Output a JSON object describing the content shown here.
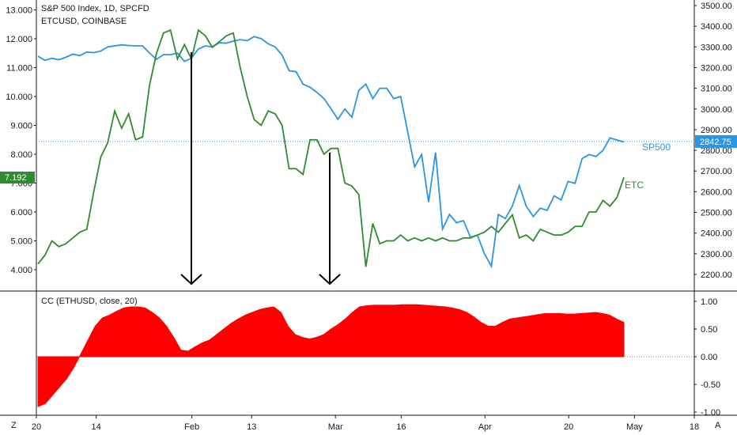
{
  "colors": {
    "etc": "#2e8b2e",
    "sp500": "#2a94e5",
    "cc": "#ff0000",
    "grid_line": "#2a94e5",
    "pane_divider": "#131722",
    "arrow": "#000000"
  },
  "header": {
    "main_title": "S&P 500 Index, 1D, SPCFD",
    "secondary_title": "ETCUSD, COINBASE",
    "indicator_title": "CC (ETHUSD, close, 20)"
  },
  "badges": {
    "etc_price": "7.192",
    "sp500_price": "2842.75"
  },
  "series_labels": {
    "sp500": "SP500",
    "etc": "ETC"
  },
  "corner": {
    "z": "Z",
    "a": "A"
  },
  "chart_data": [
    {
      "type": "line",
      "ylim_left": [
        3.6,
        13.0
      ],
      "ylim_right": [
        2150,
        3500
      ],
      "left_ticks": [
        "13.000",
        "12.000",
        "11.000",
        "10.000",
        "9.000",
        "8.000",
        "7.000",
        "6.000",
        "5.000",
        "4.000"
      ],
      "right_ticks": [
        "3500.00",
        "3400.00",
        "3300.00",
        "3200.00",
        "3100.00",
        "3000.00",
        "2900.00",
        "2800.00",
        "2700.00",
        "2600.00",
        "2500.00",
        "2400.00",
        "2300.00",
        "2200.00"
      ],
      "x_ticks": [
        "20",
        "14",
        "Feb",
        "13",
        "Mar",
        "16",
        "Apr",
        "20",
        "May",
        "18"
      ],
      "x_tick_idx": [
        0,
        10,
        26,
        36,
        50,
        61,
        75,
        89,
        100,
        110
      ],
      "n_points": 111,
      "series": [
        {
          "name": "ETC",
          "values": [
            [
              0,
              4.2
            ],
            [
              1,
              4.5
            ],
            [
              2,
              5.0
            ],
            [
              3,
              4.8
            ],
            [
              4,
              4.9
            ],
            [
              5,
              5.1
            ],
            [
              6,
              5.3
            ],
            [
              7,
              5.4
            ],
            [
              8,
              6.7
            ],
            [
              9,
              7.9
            ],
            [
              10,
              8.4
            ],
            [
              11,
              9.5
            ],
            [
              12,
              8.9
            ],
            [
              13,
              9.4
            ],
            [
              14,
              8.5
            ],
            [
              15,
              8.6
            ],
            [
              16,
              10.4
            ],
            [
              17,
              11.5
            ],
            [
              18,
              12.2
            ],
            [
              19,
              12.3
            ],
            [
              20,
              11.3
            ],
            [
              21,
              11.8
            ],
            [
              22,
              11.3
            ],
            [
              23,
              12.3
            ],
            [
              24,
              12.1
            ],
            [
              25,
              11.7
            ],
            [
              26,
              11.9
            ],
            [
              27,
              12.1
            ],
            [
              28,
              12.2
            ],
            [
              29,
              11.0
            ],
            [
              30,
              10.0
            ],
            [
              31,
              9.2
            ],
            [
              32,
              9.0
            ],
            [
              33,
              9.5
            ],
            [
              34,
              9.4
            ],
            [
              35,
              9.0
            ],
            [
              36,
              7.5
            ],
            [
              37,
              7.5
            ],
            [
              38,
              7.3
            ],
            [
              39,
              8.5
            ],
            [
              40,
              8.5
            ],
            [
              41,
              8.0
            ],
            [
              42,
              8.2
            ],
            [
              43,
              8.2
            ],
            [
              44,
              7.0
            ],
            [
              45,
              6.9
            ],
            [
              46,
              6.6
            ],
            [
              47,
              4.1
            ],
            [
              48,
              5.6
            ],
            [
              49,
              4.9
            ],
            [
              50,
              5.0
            ],
            [
              51,
              5.0
            ],
            [
              52,
              5.2
            ],
            [
              53,
              5.0
            ],
            [
              54,
              5.1
            ],
            [
              55,
              5.0
            ],
            [
              56,
              5.1
            ],
            [
              57,
              5.0
            ],
            [
              58,
              5.1
            ],
            [
              59,
              5.0
            ],
            [
              60,
              5.0
            ],
            [
              61,
              5.1
            ],
            [
              62,
              5.1
            ],
            [
              63,
              5.2
            ],
            [
              64,
              5.3
            ],
            [
              65,
              5.5
            ],
            [
              66,
              5.3
            ],
            [
              67,
              5.6
            ],
            [
              68,
              5.9
            ],
            [
              69,
              5.1
            ],
            [
              70,
              5.2
            ],
            [
              71,
              5.0
            ],
            [
              72,
              5.4
            ],
            [
              73,
              5.3
            ],
            [
              74,
              5.2
            ],
            [
              75,
              5.2
            ],
            [
              76,
              5.3
            ],
            [
              77,
              5.5
            ],
            [
              78,
              5.5
            ],
            [
              79,
              6.0
            ],
            [
              80,
              6.0
            ],
            [
              81,
              6.4
            ],
            [
              82,
              6.2
            ],
            [
              83,
              6.5
            ],
            [
              84,
              7.2
            ]
          ]
        },
        {
          "name": "SP500",
          "values": [
            [
              0,
              3255
            ],
            [
              1,
              3235
            ],
            [
              2,
              3245
            ],
            [
              3,
              3238
            ],
            [
              4,
              3250
            ],
            [
              5,
              3265
            ],
            [
              6,
              3258
            ],
            [
              7,
              3275
            ],
            [
              8,
              3272
            ],
            [
              9,
              3280
            ],
            [
              10,
              3300
            ],
            [
              11,
              3305
            ],
            [
              12,
              3310
            ],
            [
              13,
              3307
            ],
            [
              14,
              3305
            ],
            [
              15,
              3305
            ],
            [
              16,
              3270
            ],
            [
              17,
              3240
            ],
            [
              18,
              3263
            ],
            [
              19,
              3262
            ],
            [
              20,
              3270
            ],
            [
              21,
              3230
            ],
            [
              22,
              3245
            ],
            [
              23,
              3290
            ],
            [
              24,
              3305
            ],
            [
              25,
              3300
            ],
            [
              26,
              3320
            ],
            [
              27,
              3318
            ],
            [
              28,
              3328
            ],
            [
              29,
              3335
            ],
            [
              30,
              3330
            ],
            [
              31,
              3350
            ],
            [
              32,
              3340
            ],
            [
              33,
              3315
            ],
            [
              34,
              3300
            ],
            [
              35,
              3260
            ],
            [
              36,
              3185
            ],
            [
              37,
              3180
            ],
            [
              38,
              3120
            ],
            [
              39,
              3105
            ],
            [
              40,
              3080
            ],
            [
              41,
              3050
            ],
            [
              42,
              3002
            ],
            [
              43,
              2950
            ],
            [
              44,
              3000
            ],
            [
              45,
              2960
            ],
            [
              46,
              3090
            ],
            [
              47,
              3120
            ],
            [
              48,
              3050
            ],
            [
              49,
              3100
            ],
            [
              50,
              3100
            ],
            [
              51,
              3050
            ],
            [
              52,
              3060
            ],
            [
              53,
              2890
            ],
            [
              54,
              2720
            ],
            [
              55,
              2780
            ],
            [
              56,
              2550
            ],
            [
              57,
              2790
            ],
            [
              58,
              2420
            ],
            [
              59,
              2490
            ],
            [
              60,
              2450
            ],
            [
              61,
              2460
            ],
            [
              62,
              2380
            ],
            [
              63,
              2390
            ],
            [
              64,
              2300
            ],
            [
              65,
              2240
            ],
            [
              66,
              2490
            ],
            [
              67,
              2470
            ],
            [
              68,
              2530
            ],
            [
              69,
              2630
            ],
            [
              70,
              2530
            ],
            [
              71,
              2480
            ],
            [
              72,
              2520
            ],
            [
              73,
              2510
            ],
            [
              74,
              2580
            ],
            [
              75,
              2560
            ],
            [
              76,
              2650
            ],
            [
              77,
              2640
            ],
            [
              78,
              2760
            ],
            [
              79,
              2780
            ],
            [
              80,
              2770
            ],
            [
              81,
              2800
            ],
            [
              82,
              2860
            ],
            [
              83,
              2850
            ],
            [
              84,
              2840
            ]
          ]
        }
      ]
    },
    {
      "type": "area",
      "title": "CC (ETHUSD, close, 20)",
      "ylim": [
        -1.0,
        1.0
      ],
      "ticks": [
        "1.00",
        "0.50",
        "0.00",
        "-0.50",
        "-1.00"
      ],
      "values": [
        [
          0,
          -0.9
        ],
        [
          1,
          -0.85
        ],
        [
          2,
          -0.7
        ],
        [
          3,
          -0.55
        ],
        [
          4,
          -0.4
        ],
        [
          5,
          -0.2
        ],
        [
          6,
          0.05
        ],
        [
          7,
          0.3
        ],
        [
          8,
          0.55
        ],
        [
          9,
          0.7
        ],
        [
          10,
          0.75
        ],
        [
          11,
          0.82
        ],
        [
          12,
          0.88
        ],
        [
          13,
          0.9
        ],
        [
          14,
          0.9
        ],
        [
          15,
          0.88
        ],
        [
          16,
          0.8
        ],
        [
          17,
          0.7
        ],
        [
          18,
          0.55
        ],
        [
          19,
          0.35
        ],
        [
          20,
          0.12
        ],
        [
          21,
          0.1
        ],
        [
          22,
          0.18
        ],
        [
          23,
          0.25
        ],
        [
          24,
          0.3
        ],
        [
          25,
          0.4
        ],
        [
          26,
          0.5
        ],
        [
          27,
          0.6
        ],
        [
          28,
          0.68
        ],
        [
          29,
          0.75
        ],
        [
          30,
          0.8
        ],
        [
          31,
          0.85
        ],
        [
          32,
          0.88
        ],
        [
          33,
          0.9
        ],
        [
          34,
          0.8
        ],
        [
          35,
          0.55
        ],
        [
          36,
          0.4
        ],
        [
          37,
          0.35
        ],
        [
          38,
          0.32
        ],
        [
          39,
          0.35
        ],
        [
          40,
          0.4
        ],
        [
          41,
          0.5
        ],
        [
          42,
          0.58
        ],
        [
          43,
          0.68
        ],
        [
          44,
          0.8
        ],
        [
          45,
          0.9
        ],
        [
          46,
          0.92
        ],
        [
          47,
          0.93
        ],
        [
          48,
          0.93
        ],
        [
          49,
          0.93
        ],
        [
          50,
          0.93
        ],
        [
          51,
          0.94
        ],
        [
          52,
          0.94
        ],
        [
          53,
          0.94
        ],
        [
          54,
          0.93
        ],
        [
          55,
          0.92
        ],
        [
          56,
          0.91
        ],
        [
          57,
          0.9
        ],
        [
          58,
          0.88
        ],
        [
          59,
          0.85
        ],
        [
          60,
          0.8
        ],
        [
          61,
          0.72
        ],
        [
          62,
          0.62
        ],
        [
          63,
          0.55
        ],
        [
          64,
          0.55
        ],
        [
          65,
          0.62
        ],
        [
          66,
          0.68
        ],
        [
          67,
          0.7
        ],
        [
          68,
          0.72
        ],
        [
          69,
          0.74
        ],
        [
          70,
          0.76
        ],
        [
          71,
          0.78
        ],
        [
          72,
          0.78
        ],
        [
          73,
          0.78
        ],
        [
          74,
          0.77
        ],
        [
          75,
          0.77
        ],
        [
          76,
          0.78
        ],
        [
          77,
          0.79
        ],
        [
          78,
          0.8
        ],
        [
          79,
          0.78
        ],
        [
          80,
          0.75
        ],
        [
          81,
          0.68
        ],
        [
          82,
          0.62
        ]
      ]
    }
  ]
}
